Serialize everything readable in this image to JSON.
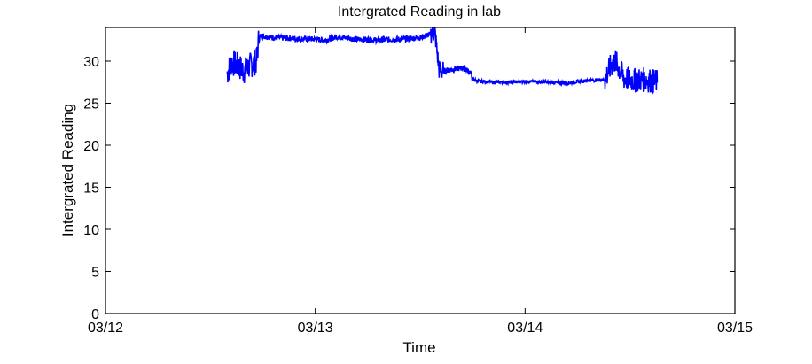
{
  "chart_data": {
    "type": "line",
    "title": "Intergrated Reading in lab",
    "xlabel": "Time",
    "ylabel": "Intergrated Reading",
    "x_ticks": [
      "03/12",
      "03/13",
      "03/14",
      "03/15"
    ],
    "x_tick_values": [
      0,
      1,
      2,
      3
    ],
    "xlim": [
      0,
      3
    ],
    "ylim": [
      0,
      34
    ],
    "y_ticks": [
      0,
      5,
      10,
      15,
      20,
      25,
      30
    ],
    "grid": false,
    "series": [
      {
        "color": "#0000ff",
        "x": [
          0.58,
          0.6,
          0.63,
          0.66,
          0.69,
          0.72,
          0.73,
          0.74,
          0.8,
          0.9,
          1.0,
          1.05,
          1.1,
          1.2,
          1.3,
          1.4,
          1.5,
          1.55,
          1.57,
          1.59,
          1.6,
          1.65,
          1.7,
          1.74,
          1.75,
          1.78,
          1.85,
          1.95,
          2.0,
          2.1,
          2.2,
          2.3,
          2.38,
          2.41,
          2.43,
          2.47,
          2.52,
          2.58,
          2.63
        ],
        "y": [
          28.5,
          29.8,
          29.5,
          28.8,
          29.5,
          30.0,
          32.5,
          33.0,
          32.8,
          32.7,
          32.6,
          32.5,
          32.9,
          32.6,
          32.5,
          32.6,
          32.8,
          33.2,
          33.5,
          29.0,
          28.8,
          29.0,
          29.2,
          28.7,
          27.8,
          27.6,
          27.5,
          27.5,
          27.6,
          27.5,
          27.4,
          27.7,
          27.8,
          29.5,
          30.0,
          28.0,
          27.7,
          27.8,
          27.5
        ]
      }
    ]
  }
}
